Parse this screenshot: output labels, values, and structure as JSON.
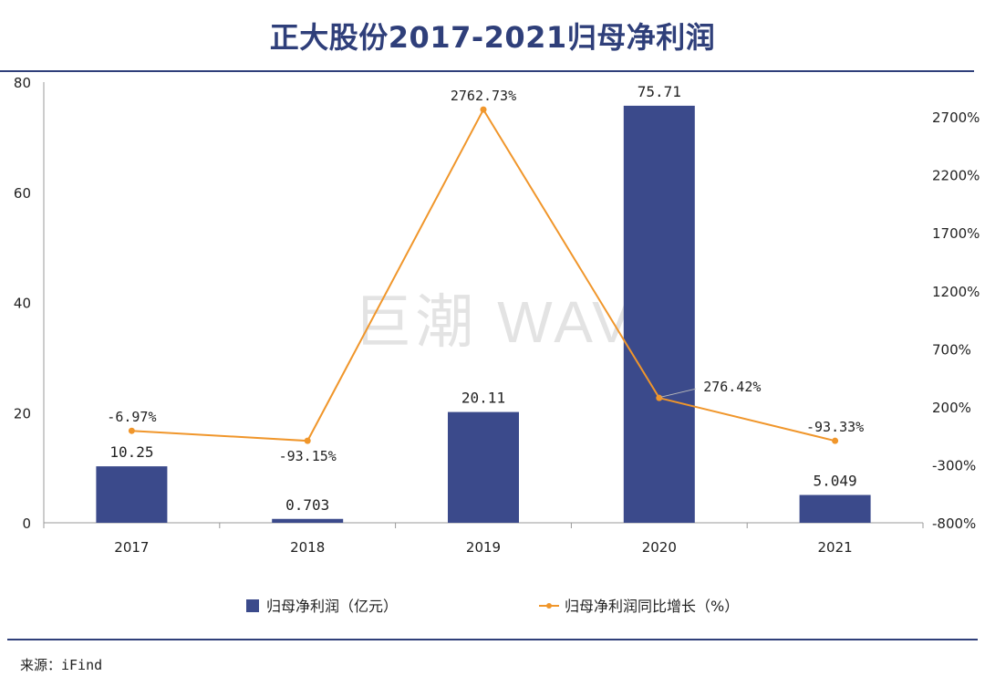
{
  "title": "正大股份2017-2021归母净利润",
  "source": "来源：iFind",
  "watermark": "巨潮 WAVE",
  "colors": {
    "title": "#2f3f7a",
    "bar": "#3b4a8b",
    "line": "#f0962b",
    "axis": "#9a9a9a",
    "text": "#222222",
    "watermark": "#e3e3e3"
  },
  "chart_data": {
    "type": "bar",
    "categories": [
      "2017",
      "2018",
      "2019",
      "2020",
      "2021"
    ],
    "series": [
      {
        "name": "归母净利润（亿元）",
        "kind": "bar",
        "axis": "left",
        "values": [
          10.25,
          0.703,
          20.11,
          75.71,
          5.049
        ],
        "labels": [
          "10.25",
          "0.703",
          "20.11",
          "75.71",
          "5.049"
        ]
      },
      {
        "name": "归母净利润同比增长（%）",
        "kind": "line",
        "axis": "right",
        "values": [
          -6.97,
          -93.15,
          2762.73,
          276.42,
          -93.33
        ],
        "labels": [
          "-6.97%",
          "-93.15%",
          "2762.73%",
          "276.42%",
          "-93.33%"
        ]
      }
    ],
    "y_left": {
      "min": 0,
      "max": 80,
      "ticks": [
        0,
        20,
        40,
        60,
        80
      ],
      "tick_labels": [
        "0",
        "20",
        "40",
        "60",
        "80"
      ]
    },
    "y_right": {
      "min": -800,
      "max": 3000,
      "ticks": [
        -800,
        -300,
        200,
        700,
        1200,
        1700,
        2200,
        2700
      ],
      "tick_labels": [
        "-800%",
        "-300%",
        "200%",
        "700%",
        "1200%",
        "1700%",
        "2200%",
        "2700%"
      ]
    },
    "legend_position": "bottom-center"
  }
}
